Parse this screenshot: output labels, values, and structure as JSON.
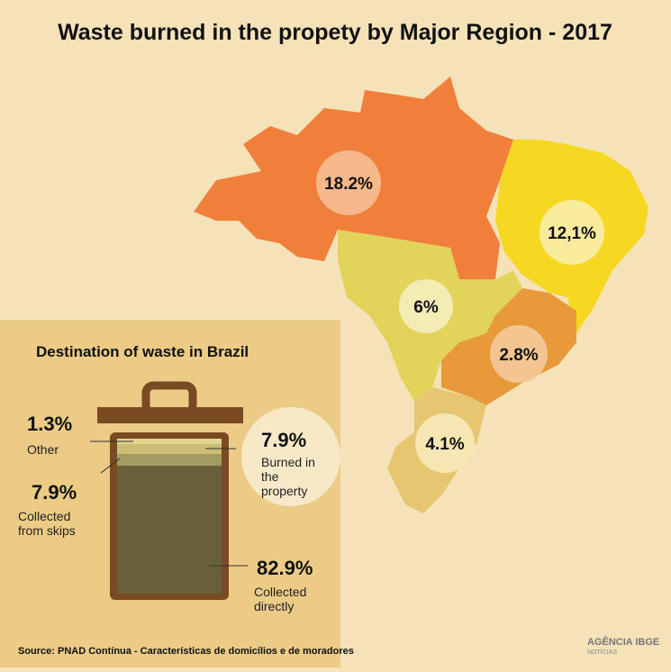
{
  "title": "Waste burned in the propety by Major Region - 2017",
  "map": {
    "labels": [
      "18.2%",
      "12,1%",
      "6%",
      "2.8%",
      "4.1%"
    ]
  },
  "inset": {
    "title": "Destination of waste in Brazil",
    "items": [
      {
        "value": "1.3%",
        "label": "Other"
      },
      {
        "value": "7.9%",
        "label": "Collected from skips"
      },
      {
        "value": "7.9%",
        "label": "Burned in the property"
      },
      {
        "value": "82.9%",
        "label": "Collected directly"
      }
    ]
  },
  "source": "Source: PNAD Contínua - Características de domicílios e de moradores",
  "logo": {
    "name": "AGÊNCIA IBGE",
    "sub": "NOTÍCIAS"
  }
}
